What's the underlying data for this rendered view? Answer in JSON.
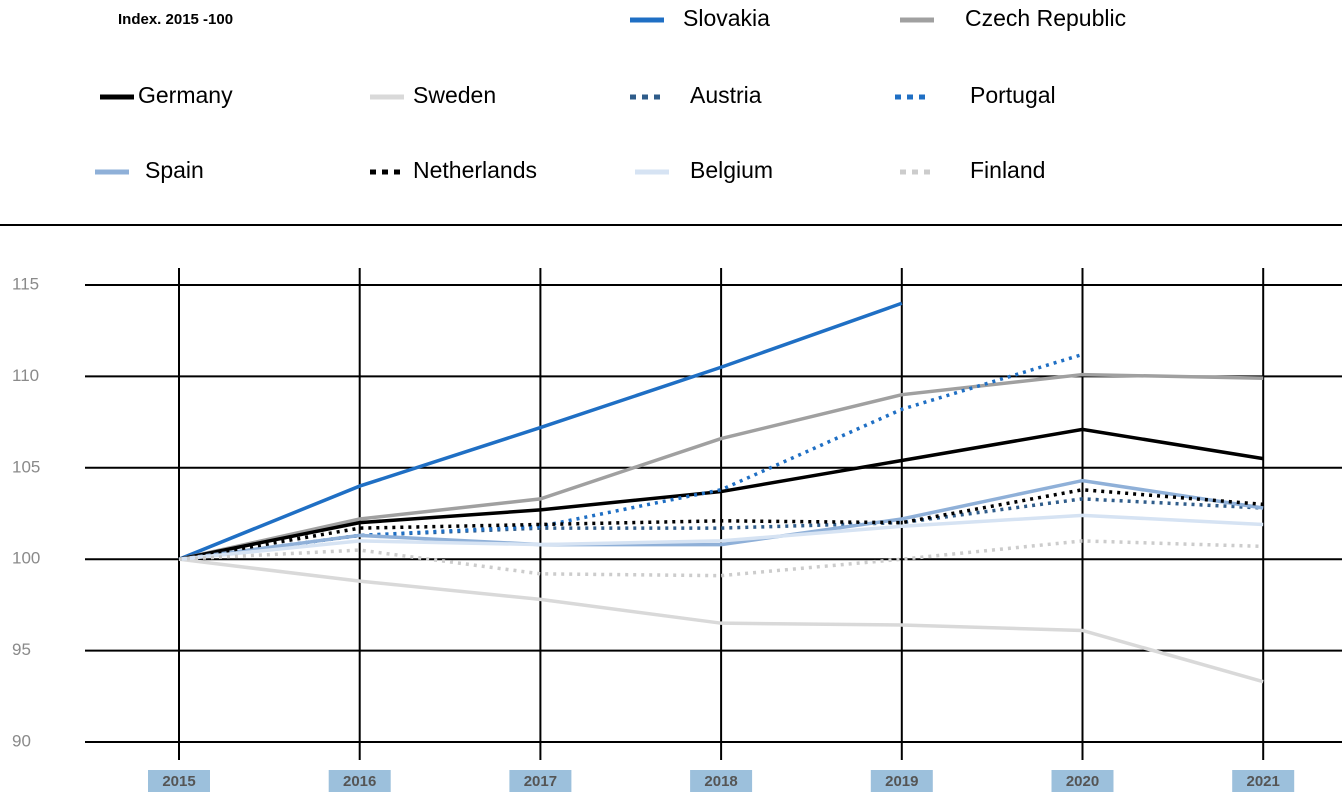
{
  "chart_data": {
    "type": "line",
    "subtitle": "Index. 2015 -100",
    "categories": [
      "2015",
      "2016",
      "2017",
      "2018",
      "2019",
      "2020",
      "2021"
    ],
    "ylim": [
      90,
      115
    ],
    "yticks": [
      90,
      95,
      100,
      105,
      110,
      115
    ],
    "grid": true,
    "series": [
      {
        "name": "Slovakia",
        "color": "#1f6fc4",
        "style": "solid",
        "values": [
          100,
          104,
          107.2,
          110.5,
          114,
          null,
          null
        ]
      },
      {
        "name": "Czech Republic",
        "color": "#a0a0a0",
        "style": "solid",
        "values": [
          100,
          102.2,
          103.3,
          106.6,
          109,
          110.1,
          109.9
        ]
      },
      {
        "name": "Germany",
        "color": "#000000",
        "style": "solid",
        "values": [
          100,
          102,
          102.7,
          103.7,
          105.4,
          107.1,
          105.5
        ]
      },
      {
        "name": "Sweden",
        "color": "#d9d9d9",
        "style": "solid",
        "values": [
          100,
          98.8,
          97.8,
          96.5,
          96.4,
          96.1,
          93.3
        ]
      },
      {
        "name": "Austria",
        "color": "#2f5c8a",
        "style": "dotted",
        "values": [
          100,
          101.3,
          101.7,
          101.7,
          102,
          103.3,
          102.8
        ]
      },
      {
        "name": "Portugal",
        "color": "#1f6fc4",
        "style": "dotted",
        "values": [
          100,
          101.3,
          101.8,
          103.8,
          108.2,
          111.2,
          null
        ]
      },
      {
        "name": "Spain",
        "color": "#8fb0d8",
        "style": "solid",
        "values": [
          100,
          101.3,
          100.8,
          100.8,
          102.2,
          104.3,
          102.8
        ]
      },
      {
        "name": "Netherlands",
        "color": "#000000",
        "style": "dotted",
        "values": [
          100,
          101.7,
          101.9,
          102.1,
          102,
          103.8,
          103
        ]
      },
      {
        "name": "Belgium",
        "color": "#d6e3f3",
        "style": "solid",
        "values": [
          100,
          101,
          100.8,
          101,
          101.8,
          102.4,
          101.9
        ]
      },
      {
        "name": "Finland",
        "color": "#cccccc",
        "style": "dotted",
        "values": [
          100,
          100.5,
          99.2,
          99.1,
          100,
          101,
          100.7
        ]
      }
    ]
  }
}
